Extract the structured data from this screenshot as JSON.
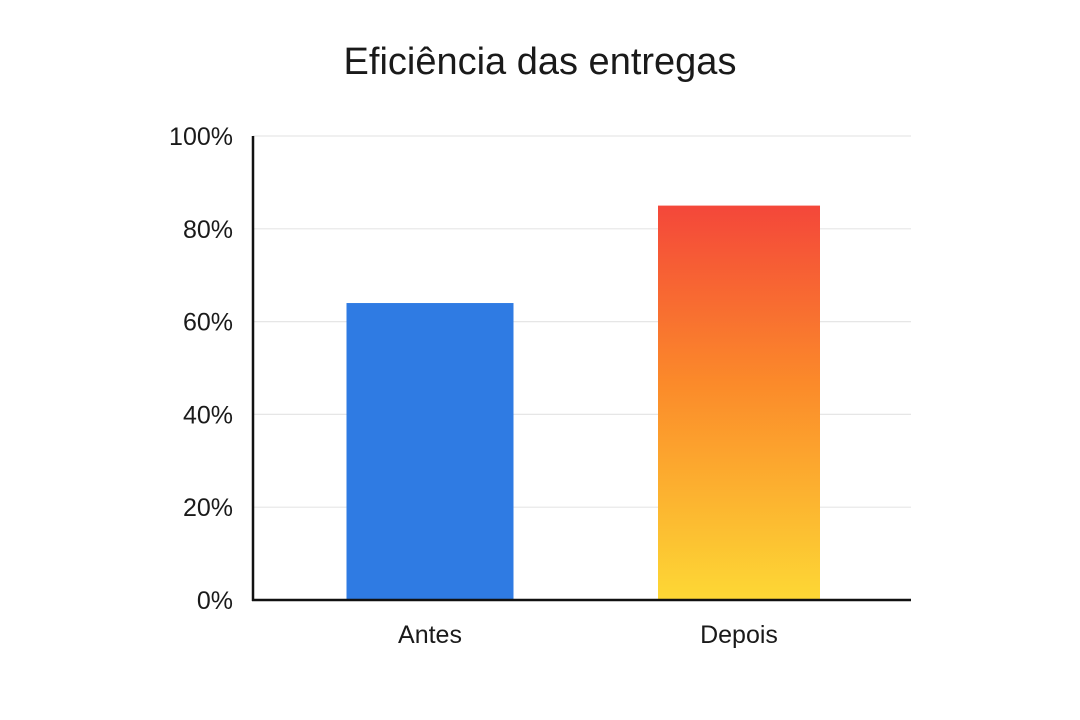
{
  "chart_data": {
    "type": "bar",
    "title": "Eficiência das entregas",
    "xlabel": "",
    "ylabel": "",
    "categories": [
      "Antes",
      "Depois"
    ],
    "values": [
      64,
      85
    ],
    "ylim": [
      0,
      100
    ],
    "y_ticks": [
      0,
      20,
      40,
      60,
      80,
      100
    ],
    "y_tick_labels": [
      "0%",
      "20%",
      "40%",
      "60%",
      "80%",
      "100%"
    ],
    "grid": true,
    "legend": "none",
    "bar_colors": [
      {
        "fill": "#2f7be3"
      },
      {
        "gradient_top": "#f4473a",
        "gradient_mid": "#fb8a2a",
        "gradient_bottom": "#fdd835"
      }
    ]
  }
}
